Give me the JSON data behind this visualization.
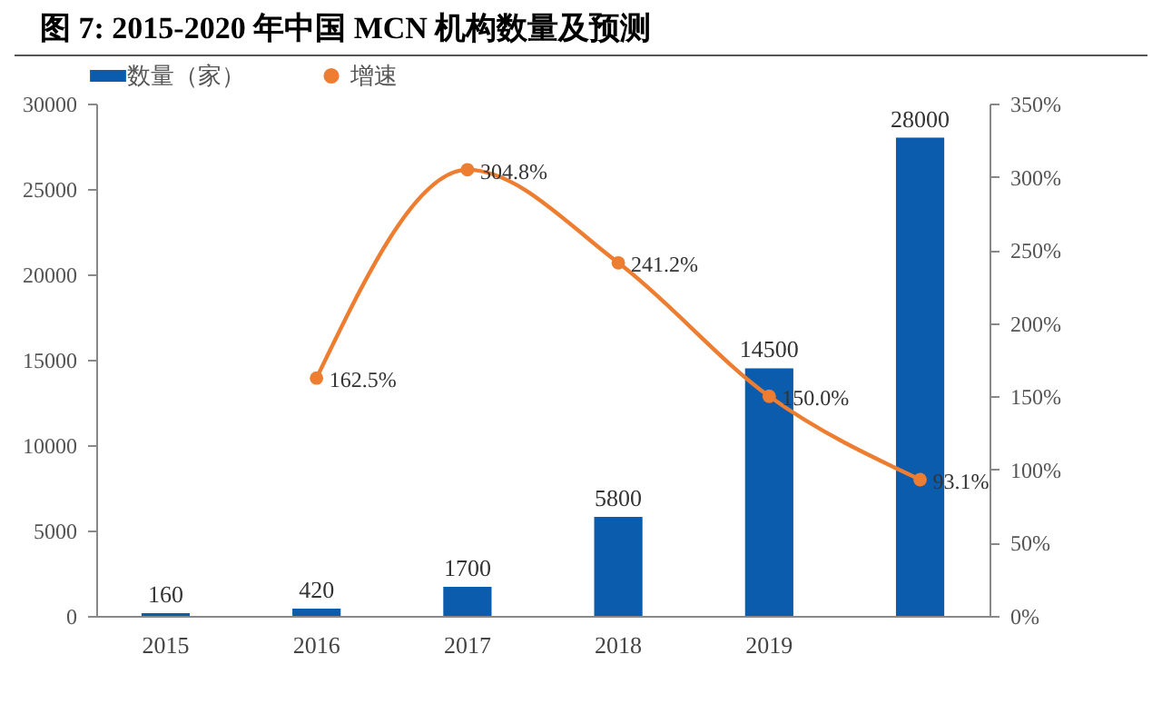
{
  "chart_data": {
    "type": "bar",
    "title": "图 7: 2015-2020 年中国 MCN 机构数量及预测",
    "categories": [
      "2015",
      "2016",
      "2017",
      "2018",
      "2019",
      null
    ],
    "series": [
      {
        "name": "数量（家）",
        "color": "#0b5cad",
        "values": [
          160,
          420,
          1700,
          5800,
          14500,
          28000
        ],
        "value_labels": [
          "160",
          "420",
          "1700",
          "5800",
          "14500",
          "28000"
        ]
      },
      {
        "name": "增速",
        "type": "line",
        "axis": "y2",
        "color": "#ed7d31",
        "values": [
          null,
          162.5,
          304.8,
          241.2,
          150.0,
          93.1
        ],
        "value_labels": [
          null,
          "162.5%",
          "304.8%",
          "241.2%",
          "150.0%",
          "93.1%"
        ]
      }
    ],
    "ylim": [
      0,
      30000
    ],
    "yticks": [
      0,
      5000,
      10000,
      15000,
      20000,
      25000,
      30000
    ],
    "y2lim": [
      0,
      350
    ],
    "y2ticks": [
      {
        "value": 0,
        "label": "0%"
      },
      {
        "value": 50,
        "label": "50%"
      },
      {
        "value": 100,
        "label": "100%"
      },
      {
        "value": 150,
        "label": "150%"
      },
      {
        "value": 200,
        "label": "200%"
      },
      {
        "value": 250,
        "label": "250%"
      },
      {
        "value": 300,
        "label": "300%"
      },
      {
        "value": 350,
        "label": "350%"
      }
    ],
    "legend": "top",
    "marker": "circle",
    "grid": false
  }
}
